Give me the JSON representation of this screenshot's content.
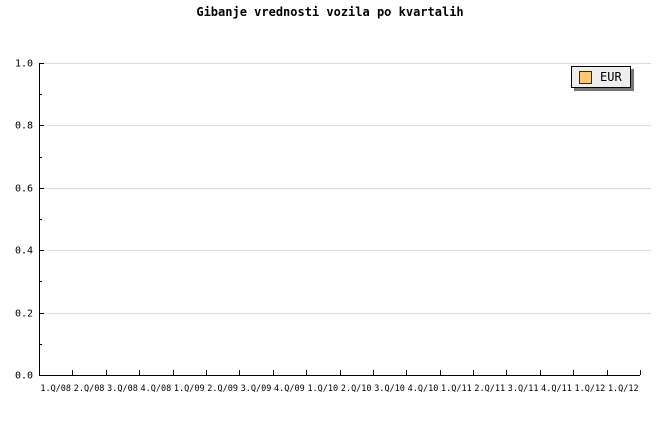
{
  "title": "Gibanje vrednosti vozila po kvartalih",
  "legend": {
    "position": "top-right",
    "items": [
      {
        "label": "EUR",
        "color": "#fcc96c"
      }
    ]
  },
  "colors": {
    "grid": "#dcdcdc",
    "axis": "#000000",
    "background": "#ffffff",
    "legend_bg": "#eeeeee",
    "legend_shadow": "#777777"
  },
  "chart_data": {
    "type": "line",
    "title": "Gibanje vrednosti vozila po kvartalih",
    "xlabel": "",
    "ylabel": "",
    "categories": [
      "1.Q/08",
      "2.Q/08",
      "3.Q/08",
      "4.Q/08",
      "1.Q/09",
      "2.Q/09",
      "3.Q/09",
      "4.Q/09",
      "1.Q/10",
      "2.Q/10",
      "3.Q/10",
      "4.Q/10",
      "1.Q/11",
      "2.Q/11",
      "3.Q/11",
      "4.Q/11",
      "1.Q/12",
      "1.Q/12"
    ],
    "series": [
      {
        "name": "EUR",
        "color": "#fcc96c",
        "values": []
      }
    ],
    "ylim": [
      0.0,
      1.0
    ],
    "y_ticks": [
      0.0,
      0.2,
      0.4,
      0.6,
      0.8,
      1.0
    ],
    "y_minor_ticks": [
      0.1,
      0.3,
      0.5,
      0.7,
      0.9
    ],
    "grid": "horizontal-major",
    "legend_position": "top-right",
    "plot_empty": true
  }
}
